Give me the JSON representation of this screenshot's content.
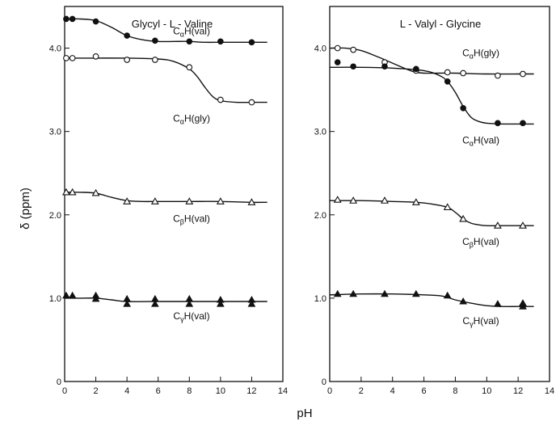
{
  "figure": {
    "ylabel": "δ (ppm)",
    "xlabel": "pH"
  },
  "chart_data": [
    {
      "type": "scatter",
      "title": "Glycyl - L - Valine",
      "xlabel": "pH",
      "ylabel": "δ (ppm)",
      "xlim": [
        0,
        14
      ],
      "ylim": [
        0,
        4.5
      ],
      "xticks": [
        "0",
        "2",
        "4",
        "6",
        "8",
        "10",
        "12",
        "14"
      ],
      "yticks": [
        {
          "value": 0,
          "label": "0"
        },
        {
          "value": 1.0,
          "label": "1.0"
        },
        {
          "value": 2.0,
          "label": "2.0"
        },
        {
          "value": 3.0,
          "label": "3.0"
        },
        {
          "value": 4.0,
          "label": "4.0"
        }
      ],
      "series": [
        {
          "name": "CαH(val)",
          "label_sub": "α",
          "marker": "filled-circle",
          "x": [
            0.1,
            0.5,
            2.0,
            4.0,
            5.8,
            8.0,
            10.0,
            12.0
          ],
          "y": [
            4.35,
            4.35,
            4.32,
            4.15,
            4.09,
            4.08,
            4.08,
            4.07
          ],
          "curve_x": [
            0,
            1,
            2,
            3,
            4,
            5,
            6,
            7,
            8,
            9,
            10,
            11,
            12,
            13
          ],
          "curve_y": [
            4.35,
            4.35,
            4.33,
            4.25,
            4.15,
            4.1,
            4.08,
            4.08,
            4.08,
            4.07,
            4.07,
            4.07,
            4.07,
            4.07
          ]
        },
        {
          "name": "CαH(gly)",
          "label_sub": "α",
          "marker": "open-circle",
          "x": [
            0.1,
            0.5,
            2.0,
            4.0,
            5.8,
            8.0,
            10.0,
            12.0
          ],
          "y": [
            3.88,
            3.88,
            3.9,
            3.86,
            3.86,
            3.77,
            3.38,
            3.35
          ],
          "curve_x": [
            0,
            2,
            4,
            6,
            7,
            8,
            8.5,
            9,
            9.5,
            10,
            11,
            12,
            13
          ],
          "curve_y": [
            3.88,
            3.88,
            3.88,
            3.87,
            3.84,
            3.75,
            3.66,
            3.53,
            3.42,
            3.37,
            3.35,
            3.35,
            3.35
          ]
        },
        {
          "name": "CβH(val)",
          "label_sub": "β",
          "marker": "open-triangle",
          "x": [
            0.1,
            0.5,
            2.0,
            4.0,
            5.8,
            8.0,
            10.0,
            12.0
          ],
          "y": [
            2.27,
            2.27,
            2.26,
            2.16,
            2.16,
            2.16,
            2.16,
            2.15
          ],
          "curve_x": [
            0,
            1,
            2,
            3,
            4,
            5,
            6,
            8,
            10,
            12,
            13
          ],
          "curve_y": [
            2.27,
            2.27,
            2.26,
            2.21,
            2.17,
            2.16,
            2.16,
            2.16,
            2.16,
            2.15,
            2.15
          ]
        },
        {
          "name": "CγH(val)",
          "label_sub": "γ",
          "marker": "filled-triangle",
          "x": [
            0.1,
            0.5,
            2.0,
            2.0,
            4.0,
            4.0,
            5.8,
            5.8,
            8.0,
            8.0,
            10.0,
            10.0,
            12.0,
            12.0
          ],
          "y": [
            1.03,
            1.03,
            1.03,
            0.99,
            0.99,
            0.93,
            0.99,
            0.93,
            0.99,
            0.93,
            0.98,
            0.93,
            0.98,
            0.93
          ],
          "curve_x": [
            0,
            1,
            2,
            3,
            4,
            6,
            8,
            10,
            12,
            13
          ],
          "curve_y": [
            1.0,
            1.0,
            1.0,
            0.98,
            0.96,
            0.96,
            0.96,
            0.96,
            0.96,
            0.96
          ]
        }
      ]
    },
    {
      "type": "scatter",
      "title": "L - Valyl - Glycine",
      "xlabel": "pH",
      "ylabel": "δ (ppm)",
      "xlim": [
        0,
        14
      ],
      "ylim": [
        0,
        4.5
      ],
      "xticks": [
        "0",
        "2",
        "4",
        "6",
        "8",
        "10",
        "12",
        "14"
      ],
      "yticks": [
        {
          "value": 0,
          "label": "0"
        },
        {
          "value": 1.0,
          "label": "1.0"
        },
        {
          "value": 2.0,
          "label": "2.0"
        },
        {
          "value": 3.0,
          "label": "3.0"
        },
        {
          "value": 4.0,
          "label": "4.0"
        }
      ],
      "series": [
        {
          "name": "CαH(gly)",
          "label_sub": "α",
          "marker": "open-circle",
          "x": [
            0.5,
            1.5,
            3.5,
            5.5,
            7.5,
            8.5,
            10.7,
            12.3
          ],
          "y": [
            4.0,
            3.98,
            3.83,
            3.73,
            3.71,
            3.7,
            3.67,
            3.69
          ],
          "curve_x": [
            0,
            1,
            2,
            3,
            4,
            5,
            5.5,
            6,
            7,
            8,
            10,
            12,
            13
          ],
          "curve_y": [
            4.0,
            4.0,
            3.97,
            3.9,
            3.82,
            3.74,
            3.71,
            3.7,
            3.7,
            3.7,
            3.69,
            3.69,
            3.69
          ]
        },
        {
          "name": "CαH(val)",
          "label_sub": "α",
          "marker": "filled-circle",
          "x": [
            0.5,
            1.5,
            3.5,
            5.5,
            7.5,
            8.5,
            10.7,
            12.3
          ],
          "y": [
            3.83,
            3.78,
            3.78,
            3.75,
            3.6,
            3.28,
            3.1,
            3.1
          ],
          "curve_x": [
            0,
            2,
            4,
            6,
            7,
            7.5,
            8,
            8.5,
            9,
            9.5,
            10,
            11,
            12,
            13
          ],
          "curve_y": [
            3.77,
            3.77,
            3.76,
            3.73,
            3.67,
            3.6,
            3.47,
            3.3,
            3.17,
            3.12,
            3.1,
            3.09,
            3.09,
            3.09
          ]
        },
        {
          "name": "CβH(val)",
          "label_sub": "β",
          "marker": "open-triangle",
          "x": [
            0.5,
            1.5,
            3.5,
            5.5,
            7.5,
            8.5,
            10.7,
            12.3
          ],
          "y": [
            2.18,
            2.17,
            2.17,
            2.15,
            2.09,
            1.95,
            1.87,
            1.87
          ],
          "curve_x": [
            0,
            2,
            4,
            5.5,
            6.5,
            7.5,
            8,
            8.5,
            9,
            9.5,
            10,
            11,
            12,
            13
          ],
          "curve_y": [
            2.17,
            2.17,
            2.16,
            2.15,
            2.13,
            2.09,
            2.03,
            1.95,
            1.9,
            1.88,
            1.87,
            1.87,
            1.87,
            1.87
          ]
        },
        {
          "name": "CγH(val)",
          "label_sub": "γ",
          "marker": "filled-triangle",
          "x": [
            0.5,
            1.5,
            3.5,
            5.5,
            7.5,
            8.5,
            10.7,
            12.3,
            12.3
          ],
          "y": [
            1.05,
            1.05,
            1.05,
            1.05,
            1.03,
            0.96,
            0.93,
            0.94,
            0.9
          ],
          "curve_x": [
            0,
            2,
            4,
            6,
            7,
            7.5,
            8,
            9,
            10,
            11,
            12,
            13
          ],
          "curve_y": [
            1.04,
            1.05,
            1.05,
            1.04,
            1.03,
            1.01,
            0.98,
            0.94,
            0.91,
            0.9,
            0.9,
            0.9
          ]
        }
      ]
    }
  ]
}
